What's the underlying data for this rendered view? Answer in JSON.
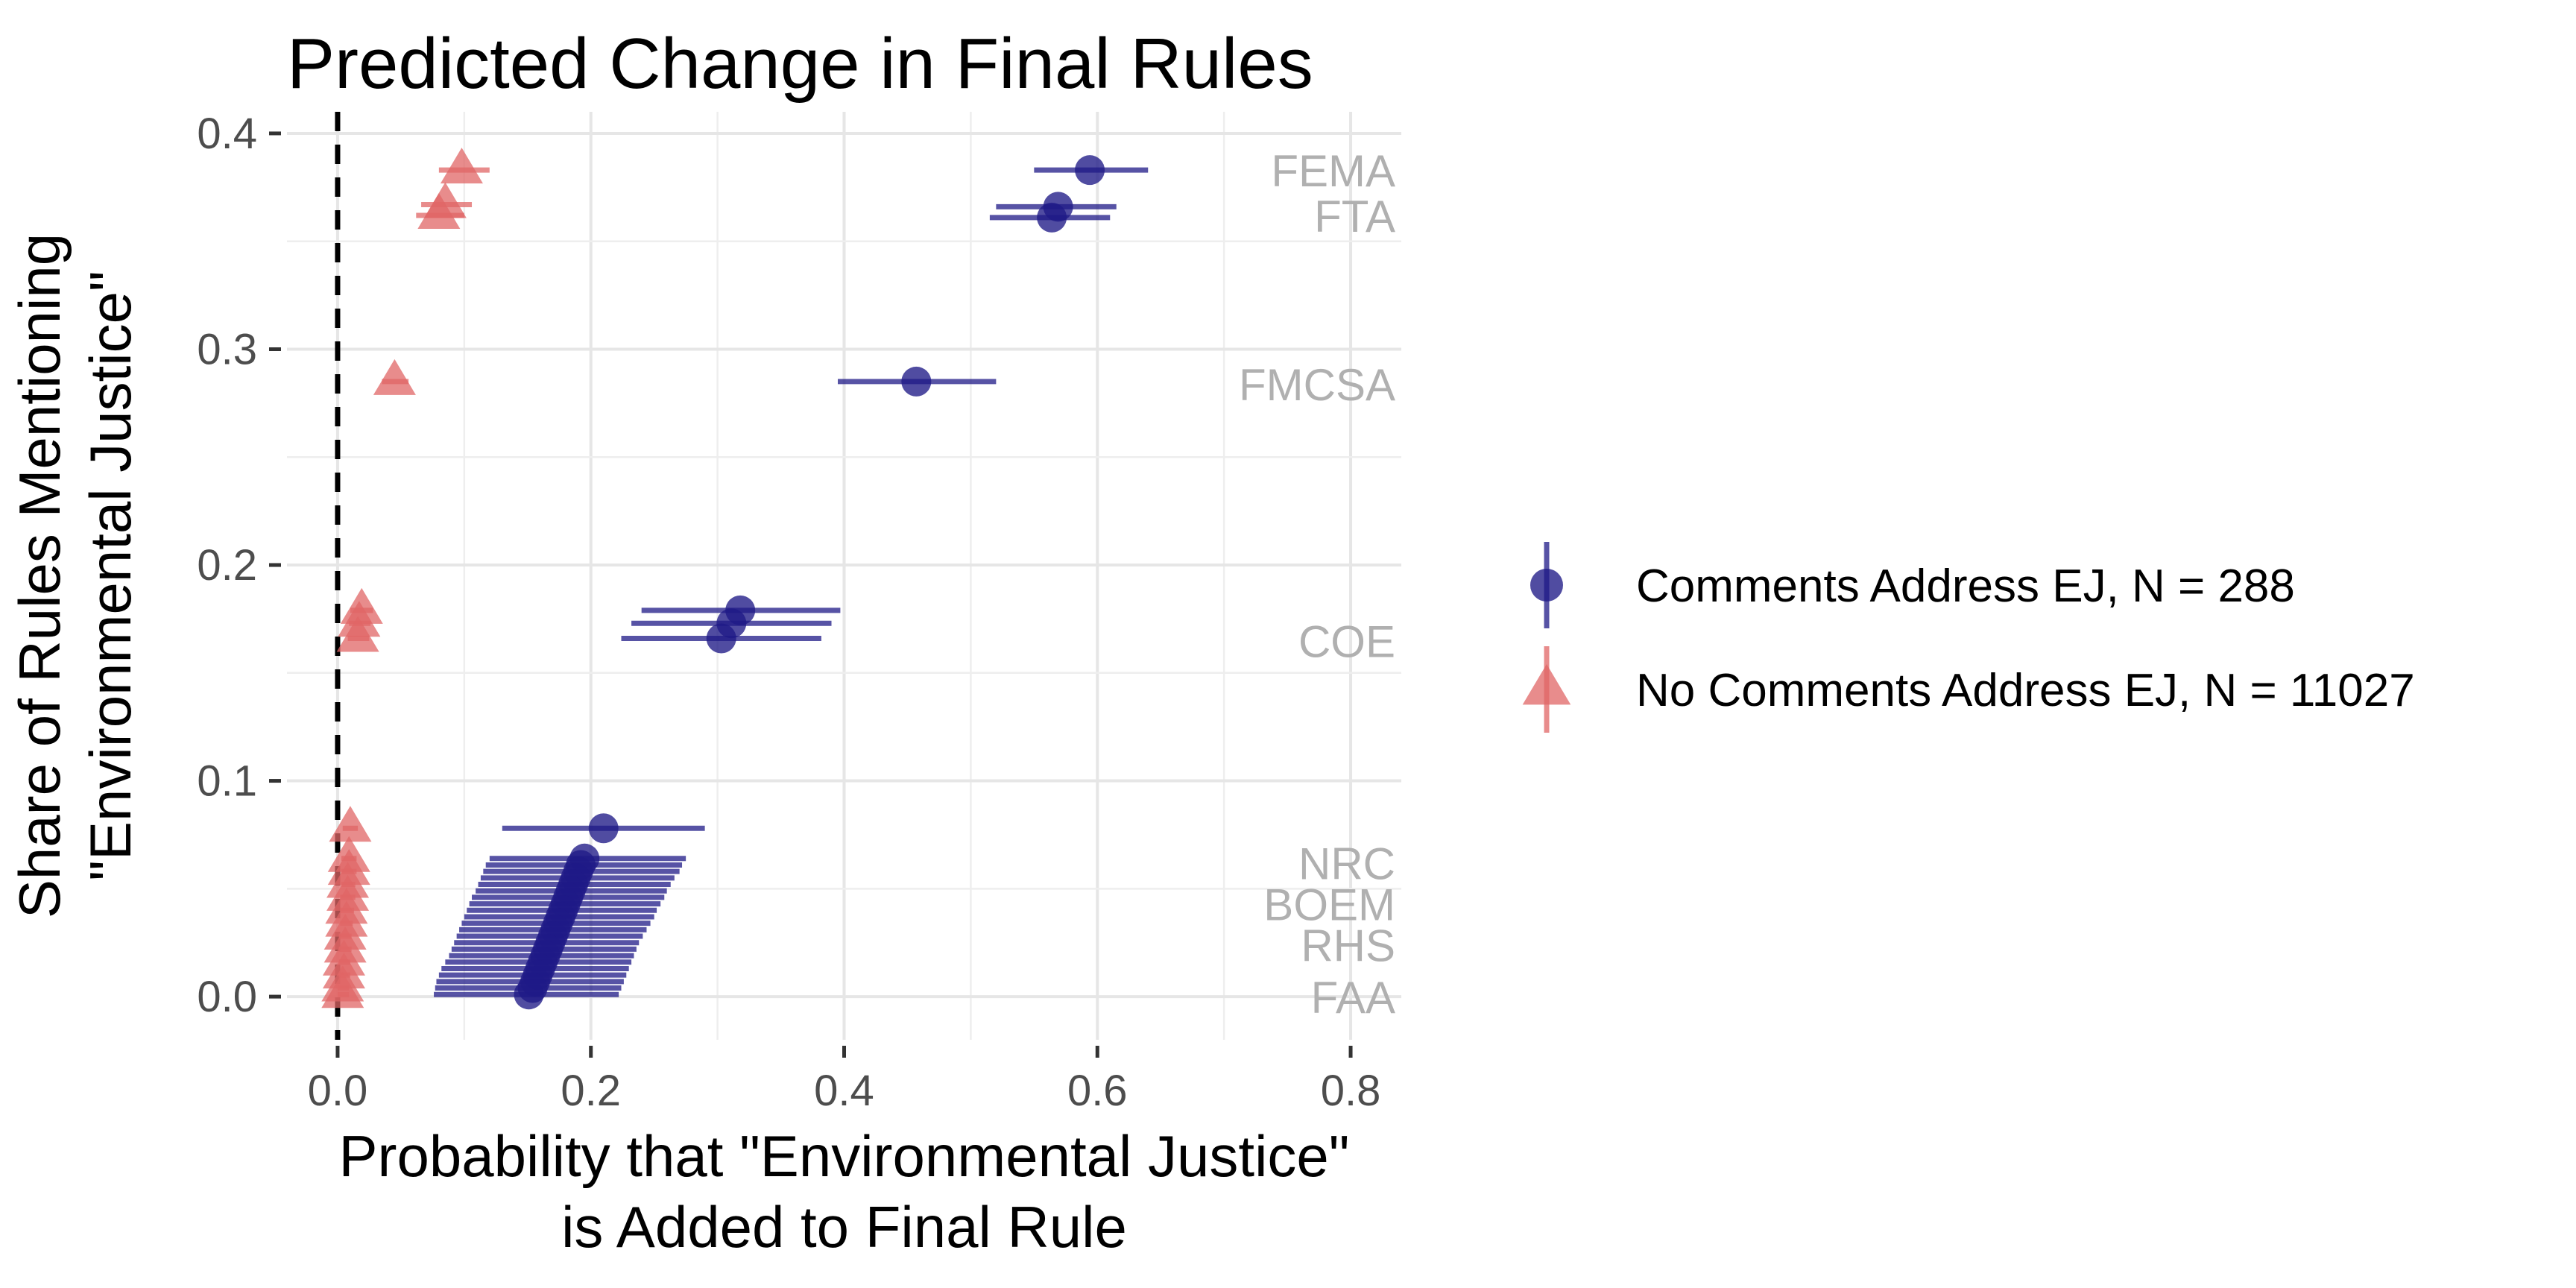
{
  "chart_data": {
    "type": "scatter",
    "title": "Predicted Change in Final Rules",
    "xlabel": [
      "Probability that \"Environmental Justice\"",
      "is Added to Final Rule"
    ],
    "ylabel": [
      "Share of Rules Mentioning",
      "\"Environmental Justice\""
    ],
    "xlim": [
      -0.04,
      0.84
    ],
    "ylim": [
      -0.02,
      0.41
    ],
    "x_ticks": [
      0.0,
      0.2,
      0.4,
      0.6,
      0.8
    ],
    "x_tick_labels": [
      "0.0",
      "0.2",
      "0.4",
      "0.6",
      "0.8"
    ],
    "y_ticks": [
      0.0,
      0.1,
      0.2,
      0.3,
      0.4
    ],
    "y_tick_labels": [
      "0.0",
      "0.1",
      "0.2",
      "0.3",
      "0.4"
    ],
    "grid": true,
    "reference_line": {
      "x": 0,
      "style": "dashed"
    },
    "legend_position": "right",
    "series": [
      {
        "name": "Comments Address EJ, N = 288",
        "marker": "circle",
        "color": "#1f1a87",
        "points": [
          {
            "x": 0.594,
            "y": 0.383,
            "lo": 0.55,
            "hi": 0.64
          },
          {
            "x": 0.569,
            "y": 0.366,
            "lo": 0.52,
            "hi": 0.615
          },
          {
            "x": 0.564,
            "y": 0.361,
            "lo": 0.515,
            "hi": 0.61
          },
          {
            "x": 0.457,
            "y": 0.285,
            "lo": 0.395,
            "hi": 0.52
          },
          {
            "x": 0.318,
            "y": 0.179,
            "lo": 0.24,
            "hi": 0.397
          },
          {
            "x": 0.311,
            "y": 0.173,
            "lo": 0.232,
            "hi": 0.39
          },
          {
            "x": 0.303,
            "y": 0.166,
            "lo": 0.224,
            "hi": 0.382
          },
          {
            "x": 0.21,
            "y": 0.078,
            "lo": 0.13,
            "hi": 0.29
          },
          {
            "x": 0.195,
            "y": 0.064,
            "lo": 0.12,
            "hi": 0.275
          },
          {
            "x": 0.192,
            "y": 0.061,
            "lo": 0.117,
            "hi": 0.272
          },
          {
            "x": 0.19,
            "y": 0.058,
            "lo": 0.115,
            "hi": 0.27
          },
          {
            "x": 0.188,
            "y": 0.055,
            "lo": 0.113,
            "hi": 0.266
          },
          {
            "x": 0.186,
            "y": 0.052,
            "lo": 0.111,
            "hi": 0.263
          },
          {
            "x": 0.184,
            "y": 0.049,
            "lo": 0.109,
            "hi": 0.26
          },
          {
            "x": 0.182,
            "y": 0.046,
            "lo": 0.106,
            "hi": 0.258
          },
          {
            "x": 0.18,
            "y": 0.043,
            "lo": 0.104,
            "hi": 0.255
          },
          {
            "x": 0.178,
            "y": 0.04,
            "lo": 0.102,
            "hi": 0.252
          },
          {
            "x": 0.176,
            "y": 0.037,
            "lo": 0.1,
            "hi": 0.25
          },
          {
            "x": 0.174,
            "y": 0.034,
            "lo": 0.098,
            "hi": 0.247
          },
          {
            "x": 0.172,
            "y": 0.031,
            "lo": 0.096,
            "hi": 0.244
          },
          {
            "x": 0.17,
            "y": 0.028,
            "lo": 0.094,
            "hi": 0.241
          },
          {
            "x": 0.168,
            "y": 0.025,
            "lo": 0.092,
            "hi": 0.238
          },
          {
            "x": 0.166,
            "y": 0.022,
            "lo": 0.09,
            "hi": 0.236
          },
          {
            "x": 0.164,
            "y": 0.019,
            "lo": 0.088,
            "hi": 0.234
          },
          {
            "x": 0.162,
            "y": 0.016,
            "lo": 0.085,
            "hi": 0.232
          },
          {
            "x": 0.16,
            "y": 0.013,
            "lo": 0.082,
            "hi": 0.23
          },
          {
            "x": 0.158,
            "y": 0.01,
            "lo": 0.08,
            "hi": 0.228
          },
          {
            "x": 0.156,
            "y": 0.007,
            "lo": 0.078,
            "hi": 0.226
          },
          {
            "x": 0.154,
            "y": 0.004,
            "lo": 0.077,
            "hi": 0.224
          },
          {
            "x": 0.151,
            "y": 0.001,
            "lo": 0.076,
            "hi": 0.222
          }
        ]
      },
      {
        "name": "No Comments Address EJ, N = 11027",
        "marker": "triangle",
        "color": "#e06666",
        "points": [
          {
            "x": 0.098,
            "y": 0.383,
            "lo": 0.08,
            "hi": 0.12
          },
          {
            "x": 0.085,
            "y": 0.367,
            "lo": 0.066,
            "hi": 0.106
          },
          {
            "x": 0.08,
            "y": 0.362,
            "lo": 0.062,
            "hi": 0.1
          },
          {
            "x": 0.045,
            "y": 0.285,
            "lo": 0.035,
            "hi": 0.056
          },
          {
            "x": 0.019,
            "y": 0.179,
            "lo": 0.01,
            "hi": 0.028
          },
          {
            "x": 0.017,
            "y": 0.173,
            "lo": 0.009,
            "hi": 0.026
          },
          {
            "x": 0.016,
            "y": 0.166,
            "lo": 0.008,
            "hi": 0.025
          },
          {
            "x": 0.01,
            "y": 0.078,
            "lo": 0.004,
            "hi": 0.016
          },
          {
            "x": 0.009,
            "y": 0.064,
            "lo": 0.003,
            "hi": 0.015
          },
          {
            "x": 0.009,
            "y": 0.058,
            "lo": 0.003,
            "hi": 0.015
          },
          {
            "x": 0.008,
            "y": 0.052,
            "lo": 0.003,
            "hi": 0.014
          },
          {
            "x": 0.008,
            "y": 0.046,
            "lo": 0.002,
            "hi": 0.014
          },
          {
            "x": 0.007,
            "y": 0.04,
            "lo": 0.002,
            "hi": 0.013
          },
          {
            "x": 0.007,
            "y": 0.034,
            "lo": 0.002,
            "hi": 0.012
          },
          {
            "x": 0.006,
            "y": 0.028,
            "lo": 0.001,
            "hi": 0.011
          },
          {
            "x": 0.006,
            "y": 0.022,
            "lo": 0.001,
            "hi": 0.011
          },
          {
            "x": 0.005,
            "y": 0.016,
            "lo": 0.001,
            "hi": 0.01
          },
          {
            "x": 0.005,
            "y": 0.01,
            "lo": 0.001,
            "hi": 0.01
          },
          {
            "x": 0.004,
            "y": 0.004,
            "lo": 0.0,
            "hi": 0.009
          },
          {
            "x": 0.004,
            "y": 0.001,
            "lo": 0.0,
            "hi": 0.009
          }
        ]
      }
    ],
    "annotations": [
      {
        "text": "FEMA",
        "y": 0.383
      },
      {
        "text": "FTA",
        "y": 0.362
      },
      {
        "text": "FMCSA",
        "y": 0.284
      },
      {
        "text": "COE",
        "y": 0.165
      },
      {
        "text": "NRC",
        "y": 0.062
      },
      {
        "text": "BOEM",
        "y": 0.043
      },
      {
        "text": "RHS",
        "y": 0.024
      },
      {
        "text": "FAA",
        "y": 0.0
      }
    ],
    "annotation_color": "#b0b0b0"
  }
}
